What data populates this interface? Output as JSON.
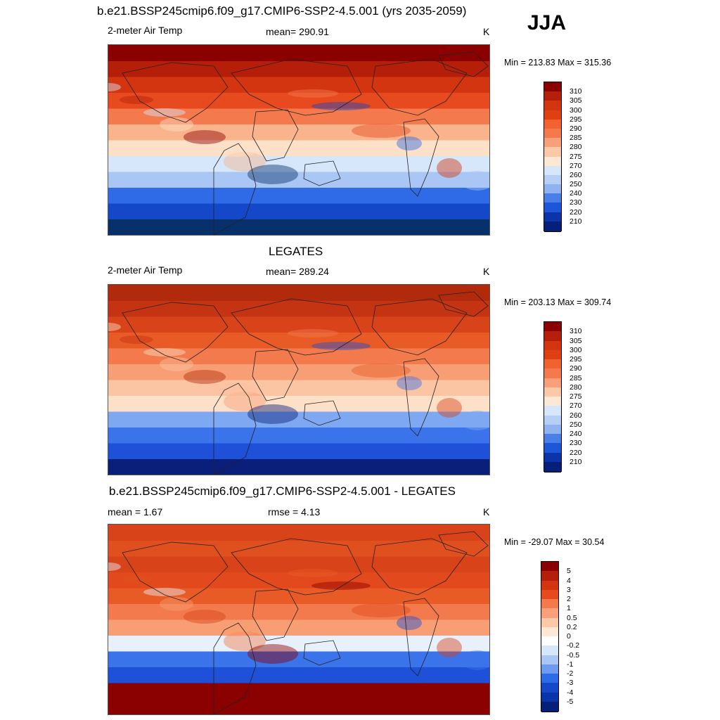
{
  "season": "JJA",
  "panels": [
    {
      "title": "b.e21.BSSP245cmip6.f09_g17.CMIP6-SSP2-4.5.001 (yrs 2035-2059)",
      "left_label": "2-meter Air Temp",
      "center_label": "mean= 290.91",
      "units": "K",
      "minmax": "Min = 213.83 Max = 315.36",
      "bands": [
        "#08306b",
        "#1448c8",
        "#2f6be6",
        "#a9c6f5",
        "#d6e6fb",
        "#fde0c8",
        "#f9b48c",
        "#f47a4e",
        "#e84a1f",
        "#d33510",
        "#b51e08",
        "#8b0000"
      ],
      "cbar_ticks": [
        "310",
        "305",
        "300",
        "295",
        "290",
        "285",
        "280",
        "275",
        "270",
        "260",
        "250",
        "240",
        "230",
        "220",
        "210"
      ],
      "cbar_colors": [
        "#8b0000",
        "#b51e08",
        "#d33510",
        "#e03f12",
        "#f0622f",
        "#f47a4e",
        "#f9a07a",
        "#fbc8a8",
        "#fde8d6",
        "#d6e6fb",
        "#b5cff6",
        "#8fb3f1",
        "#4a7fe8",
        "#1e56d8",
        "#0a34a8",
        "#061f78"
      ]
    },
    {
      "title": "LEGATES",
      "left_label": "2-meter Air Temp",
      "center_label": "mean= 289.24",
      "units": "K",
      "minmax": "Min = 203.13 Max = 309.74",
      "bands": [
        "#0a1f7a",
        "#1e50d8",
        "#3b73ea",
        "#7ea8f1",
        "#fde0c8",
        "#fbc4a2",
        "#f79e74",
        "#f27a4c",
        "#e85a26",
        "#d8431a",
        "#c53412",
        "#b22a0c"
      ],
      "cbar_ticks": [
        "310",
        "305",
        "300",
        "295",
        "290",
        "285",
        "280",
        "275",
        "270",
        "260",
        "250",
        "240",
        "230",
        "220",
        "210"
      ],
      "cbar_colors": [
        "#8b0000",
        "#b51e08",
        "#d33510",
        "#e03f12",
        "#f0622f",
        "#f47a4e",
        "#f9a07a",
        "#fbc8a8",
        "#fde8d6",
        "#d6e6fb",
        "#b5cff6",
        "#8fb3f1",
        "#4a7fe8",
        "#1e56d8",
        "#0a34a8",
        "#061f78"
      ]
    },
    {
      "title": "b.e21.BSSP245cmip6.f09_g17.CMIP6-SSP2-4.5.001 - LEGATES",
      "left_label": "mean =   1.67",
      "center_label": "rmse =   4.13",
      "units": "K",
      "minmax": "Min = -29.07 Max =  30.54",
      "bands": [
        "#8b0000",
        "#8b0000",
        "#1e50d8",
        "#3b73ea",
        "#e8f0fb",
        "#f79e74",
        "#f27a4c",
        "#e85a26",
        "#e2491c",
        "#d8431a",
        "#e0501f",
        "#d8431a"
      ],
      "cbar_ticks": [
        "5",
        "4",
        "3",
        "2",
        "1",
        "0.5",
        "0.2",
        "0",
        "-0.2",
        "-0.5",
        "-1",
        "-2",
        "-3",
        "-4",
        "-5"
      ],
      "cbar_colors": [
        "#8b0000",
        "#b51e08",
        "#d33510",
        "#e84a1f",
        "#f47a4e",
        "#f9a07a",
        "#fbc8a8",
        "#fde8d6",
        "#ffffff",
        "#d6e6fb",
        "#a9c6f5",
        "#6f9bef",
        "#2f6be6",
        "#1448c8",
        "#0a34a8",
        "#061f78"
      ]
    }
  ]
}
